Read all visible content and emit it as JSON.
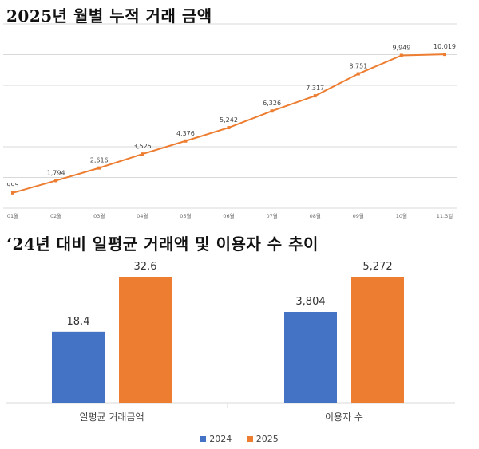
{
  "titles": {
    "chart1": "2025년 월별 누적 거래 금액",
    "chart2": "‘24년 대비 일평균 거래액 및 이용자 수 추이"
  },
  "colors": {
    "line": "#ED7D31",
    "grid": "#D9D9D9",
    "series2024": "#4472C4",
    "series2025": "#ED7D31"
  },
  "chart_data": [
    {
      "type": "line",
      "title": "2025년 월별 누적 거래 금액",
      "categories": [
        "01월",
        "02월",
        "03월",
        "04월",
        "05월",
        "06월",
        "07월",
        "08월",
        "09월",
        "10월",
        "11.3일"
      ],
      "values": [
        995,
        1794,
        2616,
        3525,
        4376,
        5242,
        6326,
        7317,
        8751,
        9949,
        10019
      ],
      "value_labels": [
        "995",
        "1,794",
        "2,616",
        "3,525",
        "4,376",
        "5,242",
        "6,326",
        "7,317",
        "8,751",
        "9,949",
        "10,019"
      ],
      "ylim": [
        0,
        12000
      ],
      "grid": true
    },
    {
      "type": "bar",
      "title": "‘24년 대비 일평균 거래액 및 이용자 수 추이",
      "categories": [
        "일평균 거래금액",
        "이용자 수"
      ],
      "series": [
        {
          "name": "2024",
          "values": [
            18.4,
            3804
          ],
          "labels": [
            "18.4",
            "3,804"
          ]
        },
        {
          "name": "2025",
          "values": [
            32.6,
            5272
          ],
          "labels": [
            "32.6",
            "5,272"
          ]
        }
      ],
      "legend": "bottom-center"
    }
  ]
}
